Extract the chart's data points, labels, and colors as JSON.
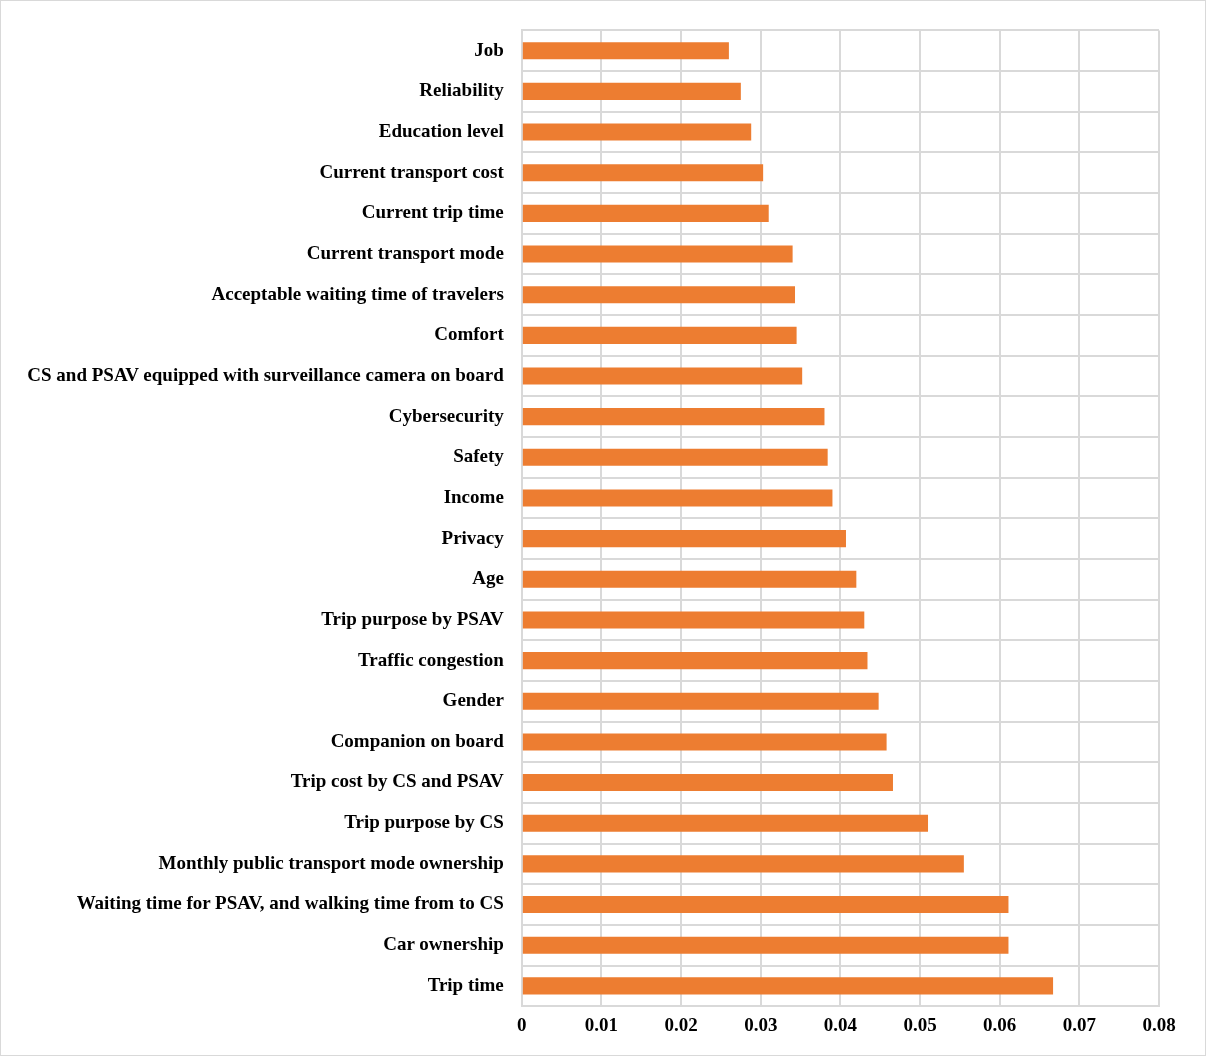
{
  "chart_data": {
    "type": "bar",
    "orientation": "horizontal",
    "categories": [
      "Job",
      "Reliability",
      "Education level",
      "Current transport cost",
      "Current trip time",
      "Current transport mode",
      "Acceptable waiting time of travelers",
      "Comfort",
      "CS and PSAV equipped with surveillance camera on board",
      "Cybersecurity",
      "Safety",
      "Income",
      "Privacy",
      "Age",
      "Trip purpose by PSAV",
      "Traffic congestion",
      "Gender",
      "Companion on board",
      "Trip cost by CS and PSAV",
      "Trip purpose by CS",
      "Monthly public transport mode ownership",
      "Waiting time for PSAV, and walking time from to CS",
      "Car ownership",
      "Trip time"
    ],
    "values": [
      0.026,
      0.0275,
      0.0288,
      0.0303,
      0.031,
      0.034,
      0.0343,
      0.0345,
      0.0352,
      0.038,
      0.0384,
      0.039,
      0.0407,
      0.042,
      0.043,
      0.0434,
      0.0448,
      0.0458,
      0.0466,
      0.051,
      0.0555,
      0.0611,
      0.0611,
      0.0667
    ],
    "color": "#ed7d31",
    "xlim": [
      0,
      0.08
    ],
    "xticks": [
      0,
      0.01,
      0.02,
      0.03,
      0.04,
      0.05,
      0.06,
      0.07,
      0.08
    ],
    "grid": true
  }
}
